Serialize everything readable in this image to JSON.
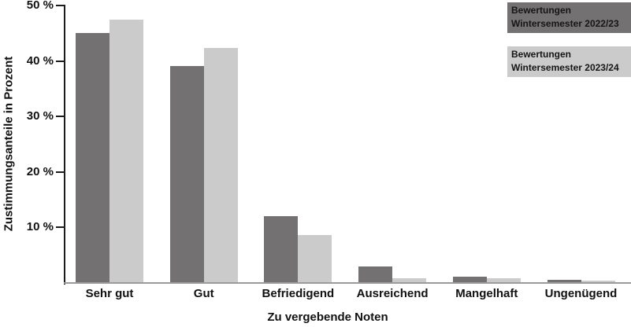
{
  "chart_data": {
    "type": "bar",
    "title": "",
    "xlabel": "Zu vergebende Noten",
    "ylabel": "Zustimmungsanteile in Prozent",
    "ylim": [
      0,
      50
    ],
    "grid": false,
    "legend_position": "top-right",
    "categories": [
      "Sehr gut",
      "Gut",
      "Befriedigend",
      "Ausreichend",
      "Mangelhaft",
      "Ungenügend"
    ],
    "series": [
      {
        "key": "ws-2022-23",
        "name": "Bewertungen Wintersemester 2022/23",
        "legend_label": "Bewertungen\nWintersemester 2022/23",
        "color": "#737171",
        "values": [
          45.0,
          39.1,
          12.1,
          3.0,
          1.1,
          0.5
        ]
      },
      {
        "key": "ws-2023-24",
        "name": "Bewertungen Wintersemester 2023/24",
        "legend_label": "Bewertungen\nWintersemester 2023/24",
        "color": "#cbcbcb",
        "values": [
          47.5,
          42.4,
          8.6,
          0.9,
          0.8,
          0.4
        ]
      }
    ],
    "yticks": [
      {
        "value": 10,
        "label": "10 %"
      },
      {
        "value": 20,
        "label": "20 %"
      },
      {
        "value": 30,
        "label": "30 %"
      },
      {
        "value": 40,
        "label": "40 %"
      },
      {
        "value": 50,
        "label": "50 %"
      }
    ]
  }
}
